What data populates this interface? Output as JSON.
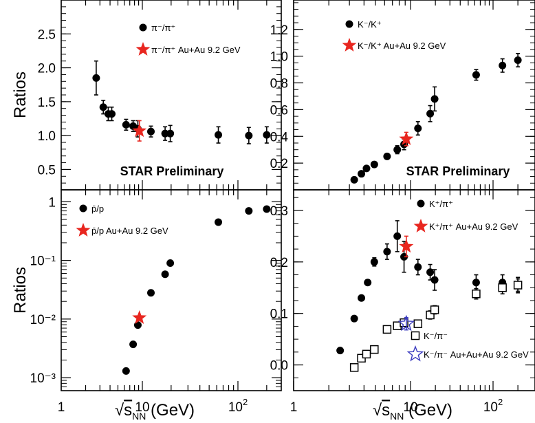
{
  "chart_data": [
    {
      "type": "scatter",
      "panel": "top-left",
      "ylabel": "Ratios",
      "xscale": "log",
      "xlim": [
        1,
        250
      ],
      "ylim": [
        0.2,
        3.0
      ],
      "yticks": [
        {
          "v": 0.5,
          "label": "0.5"
        },
        {
          "v": 1.0,
          "label": "1.0"
        },
        {
          "v": 1.5,
          "label": "1.5"
        },
        {
          "v": 2.0,
          "label": "2.0"
        },
        {
          "v": 2.5,
          "label": "2.5"
        }
      ],
      "annotation": "STAR Preliminary",
      "series": [
        {
          "name": "π⁻/π⁺",
          "marker": "dot",
          "color": "#000000",
          "x": [
            2.7,
            3.3,
            3.8,
            4.2,
            6.3,
            7.7,
            8.8,
            12.3,
            17.3,
            19.6,
            62.4,
            130,
            200
          ],
          "y": [
            1.85,
            1.42,
            1.32,
            1.32,
            1.16,
            1.14,
            1.1,
            1.06,
            1.03,
            1.03,
            1.01,
            1.0,
            1.01
          ],
          "err": [
            0.25,
            0.1,
            0.1,
            0.1,
            0.08,
            0.08,
            0.12,
            0.08,
            0.1,
            0.12,
            0.12,
            0.12,
            0.12
          ]
        },
        {
          "name": "π⁻/π⁺ Au+Au 9.2 GeV",
          "marker": "star",
          "color": "#e8261f",
          "x": [
            9.2
          ],
          "y": [
            1.07
          ],
          "err": [
            0.15
          ]
        }
      ]
    },
    {
      "type": "scatter",
      "panel": "top-right",
      "xscale": "log",
      "xlim": [
        1,
        250
      ],
      "ylim": [
        0.0,
        1.42
      ],
      "yticks": [
        {
          "v": 0.2,
          "label": "0.2"
        },
        {
          "v": 0.4,
          "label": "0.4"
        },
        {
          "v": 0.6,
          "label": "0.6"
        },
        {
          "v": 0.8,
          "label": "0.8"
        },
        {
          "v": 1.0,
          "label": "1.0"
        },
        {
          "v": 1.2,
          "label": "1.2"
        }
      ],
      "annotation": "STAR Preliminary",
      "series": [
        {
          "name": "K⁻/K⁺",
          "marker": "dot",
          "color": "#000000",
          "x": [
            3.3,
            3.8,
            4.2,
            4.9,
            6.3,
            7.7,
            8.8,
            12.3,
            17.3,
            19.6,
            62.4,
            130,
            200
          ],
          "y": [
            0.075,
            0.12,
            0.16,
            0.19,
            0.25,
            0.3,
            0.34,
            0.46,
            0.57,
            0.68,
            0.86,
            0.93,
            0.97
          ],
          "err": [
            0.01,
            0.01,
            0.01,
            0.02,
            0.02,
            0.03,
            0.04,
            0.05,
            0.06,
            0.09,
            0.04,
            0.05,
            0.05
          ]
        },
        {
          "name": "K⁻/K⁺ Au+Au 9.2 GeV",
          "marker": "star",
          "color": "#e8261f",
          "x": [
            9.2
          ],
          "y": [
            0.38
          ],
          "err": [
            0.05
          ]
        }
      ]
    },
    {
      "type": "scatter",
      "panel": "bottom-left",
      "ylabel": "Ratios",
      "xlabel": "√sNN (GeV)",
      "xscale": "log",
      "yscale": "log",
      "xlim": [
        1,
        250
      ],
      "ylim": [
        0.0006,
        1.6
      ],
      "xticks": [
        {
          "v": 1,
          "label": "1"
        },
        {
          "v": 10,
          "label": "10"
        },
        {
          "v": 100,
          "label": "10²"
        }
      ],
      "yticks": [
        {
          "v": 0.001,
          "label": "10⁻³"
        },
        {
          "v": 0.01,
          "label": "10⁻²"
        },
        {
          "v": 0.1,
          "label": "10⁻¹"
        },
        {
          "v": 1,
          "label": "1"
        }
      ],
      "series": [
        {
          "name": "p̄/p",
          "marker": "dot",
          "color": "#000000",
          "x": [
            6.3,
            7.7,
            8.8,
            12.3,
            17.3,
            19.6,
            62.4,
            130,
            200
          ],
          "y": [
            0.0013,
            0.0037,
            0.0079,
            0.028,
            0.058,
            0.09,
            0.45,
            0.7,
            0.75
          ]
        },
        {
          "name": "p̄/p Au+Au 9.2 GeV",
          "marker": "star",
          "color": "#e8261f",
          "x": [
            9.2
          ],
          "y": [
            0.0105
          ]
        }
      ]
    },
    {
      "type": "scatter",
      "panel": "bottom-right",
      "xlabel": "√sNN (GeV)",
      "xscale": "log",
      "xlim": [
        1,
        250
      ],
      "ylim": [
        -0.05,
        0.34
      ],
      "xticks": [
        {
          "v": 1,
          "label": "1"
        },
        {
          "v": 10,
          "label": "10"
        },
        {
          "v": 100,
          "label": "10²"
        }
      ],
      "yticks": [
        {
          "v": 0.0,
          "label": "0.0"
        },
        {
          "v": 0.1,
          "label": "0.1"
        },
        {
          "v": 0.2,
          "label": "0.2"
        },
        {
          "v": 0.3,
          "label": "0.3"
        }
      ],
      "series": [
        {
          "name": "K⁺/π⁺",
          "marker": "dot",
          "color": "#000000",
          "x": [
            2.5,
            3.3,
            3.8,
            4.3,
            4.9,
            6.3,
            7.7,
            8.8,
            12.3,
            17.3,
            19.6,
            62.4,
            130,
            200
          ],
          "y": [
            0.028,
            0.09,
            0.13,
            0.16,
            0.2,
            0.22,
            0.25,
            0.21,
            0.19,
            0.18,
            0.165,
            0.16,
            0.16,
            0.155
          ],
          "err": [
            0.0,
            0.005,
            0.005,
            0.005,
            0.008,
            0.015,
            0.03,
            0.03,
            0.015,
            0.015,
            0.02,
            0.015,
            0.015,
            0.015
          ]
        },
        {
          "name": "K⁺/π⁺ Au+Au 9.2 GeV",
          "marker": "star",
          "color": "#e8261f",
          "x": [
            9.2
          ],
          "y": [
            0.23
          ],
          "err": [
            0.02
          ]
        },
        {
          "name": "K⁻/π⁻",
          "marker": "open-square",
          "color": "#000000",
          "x": [
            3.3,
            3.8,
            4.2,
            4.9,
            6.3,
            7.7,
            8.8,
            12.3,
            17.3,
            19.6,
            62.4,
            130,
            200
          ],
          "y": [
            -0.005,
            0.013,
            0.021,
            0.03,
            0.069,
            0.076,
            0.082,
            0.08,
            0.097,
            0.107,
            0.138,
            0.15,
            0.155
          ],
          "err": [
            0.0,
            0.0,
            0.0,
            0.0,
            0.005,
            0.005,
            0.005,
            0.005,
            0.008,
            0.008,
            0.01,
            0.012,
            0.012
          ]
        },
        {
          "name": "K⁻/π⁻ Au+Au+Au 9.2 GeV",
          "marker": "open-star",
          "color": "#3b3bbf",
          "x": [
            9.2
          ],
          "y": [
            0.08
          ],
          "err": [
            0.012
          ]
        }
      ]
    }
  ]
}
